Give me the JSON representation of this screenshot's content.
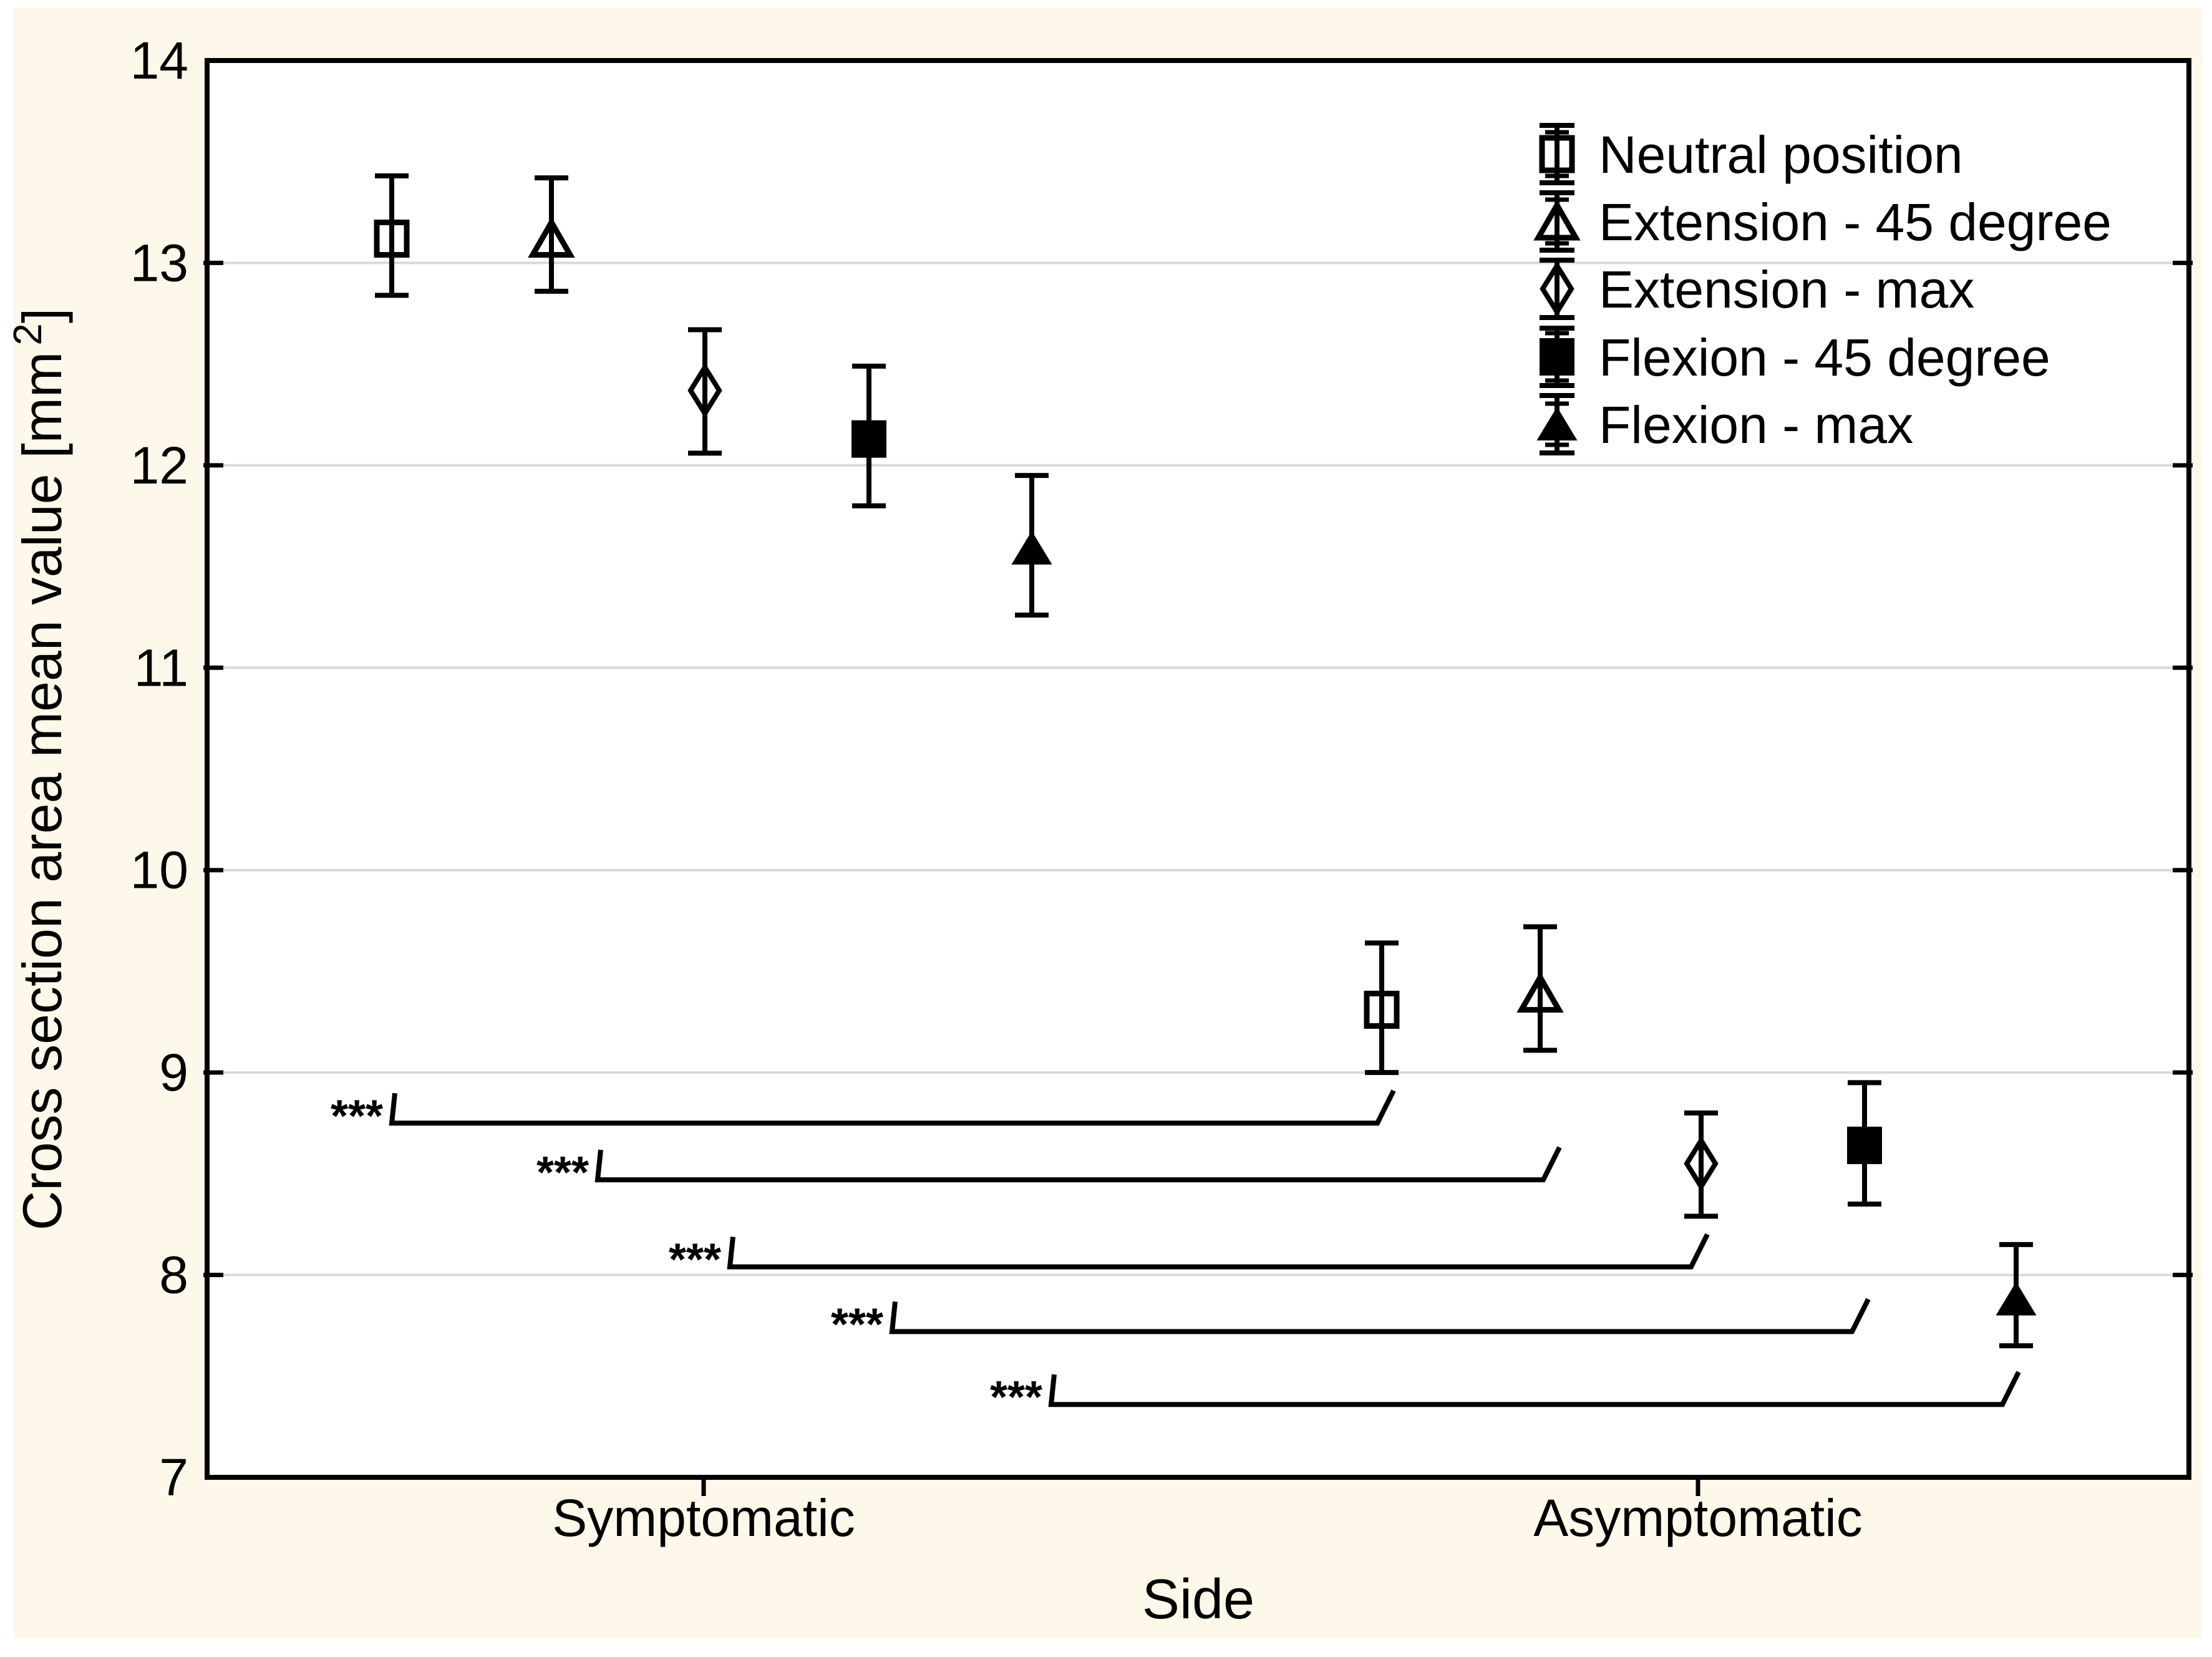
{
  "chart_data": {
    "type": "errorbar",
    "title": "",
    "xlabel": "Side",
    "ylabel": "Cross section area mean value [mm²]",
    "ylabel_parts": {
      "pre": "Cross section area mean value [mm",
      "sup": "2",
      "post": "]"
    },
    "ylim": [
      7,
      14
    ],
    "yticks": [
      7,
      8,
      9,
      10,
      11,
      12,
      13,
      14
    ],
    "grid": "horizontal-on",
    "legend_position": "top-right-inside",
    "categories": [
      "Symptomatic",
      "Asymptomatic"
    ],
    "series": [
      {
        "name": "Neutral position",
        "marker": "open-square",
        "values": [
          {
            "category": "Symptomatic",
            "mean": 13.12,
            "ci_low": 12.84,
            "ci_high": 13.43
          },
          {
            "category": "Asymptomatic",
            "mean": 9.31,
            "ci_low": 9.0,
            "ci_high": 9.64
          }
        ]
      },
      {
        "name": "Extension - 45 degree",
        "marker": "open-triangle",
        "values": [
          {
            "category": "Symptomatic",
            "mean": 13.12,
            "ci_low": 12.86,
            "ci_high": 13.42
          },
          {
            "category": "Asymptomatic",
            "mean": 9.39,
            "ci_low": 9.11,
            "ci_high": 9.72
          }
        ]
      },
      {
        "name": "Extension - max",
        "marker": "open-diamond",
        "values": [
          {
            "category": "Symptomatic",
            "mean": 12.37,
            "ci_low": 12.06,
            "ci_high": 12.67
          },
          {
            "category": "Asymptomatic",
            "mean": 8.55,
            "ci_low": 8.29,
            "ci_high": 8.8
          }
        ]
      },
      {
        "name": "Flexion - 45 degree",
        "marker": "filled-square",
        "values": [
          {
            "category": "Symptomatic",
            "mean": 12.13,
            "ci_low": 11.8,
            "ci_high": 12.49
          },
          {
            "category": "Asymptomatic",
            "mean": 8.64,
            "ci_low": 8.35,
            "ci_high": 8.95
          }
        ]
      },
      {
        "name": "Flexion - max",
        "marker": "filled-triangle",
        "values": [
          {
            "category": "Symptomatic",
            "mean": 11.59,
            "ci_low": 11.26,
            "ci_high": 11.95
          },
          {
            "category": "Asymptomatic",
            "mean": 7.88,
            "ci_low": 7.65,
            "ci_high": 8.15
          }
        ]
      }
    ],
    "significance_brackets": [
      {
        "label": "***",
        "series": "Neutral position",
        "from_category": "Symptomatic",
        "to_category": "Asymptomatic",
        "bar_y": 8.75
      },
      {
        "label": "***",
        "series": "Extension - 45 degree",
        "from_category": "Symptomatic",
        "to_category": "Asymptomatic",
        "bar_y": 8.47
      },
      {
        "label": "***",
        "series": "Extension - max",
        "from_category": "Symptomatic",
        "to_category": "Asymptomatic",
        "bar_y": 8.04
      },
      {
        "label": "***",
        "series": "Flexion - 45 degree",
        "from_category": "Symptomatic",
        "to_category": "Asymptomatic",
        "bar_y": 7.72
      },
      {
        "label": "***",
        "series": "Flexion - max",
        "from_category": "Symptomatic",
        "to_category": "Asymptomatic",
        "bar_y": 7.36
      }
    ],
    "colors": {
      "page_background": "#FFFFFF",
      "figure_background": "#FDF8EA",
      "plot_background": "#FFFFFF",
      "gridline": "#D9D9D9",
      "ink": "#000000"
    }
  }
}
